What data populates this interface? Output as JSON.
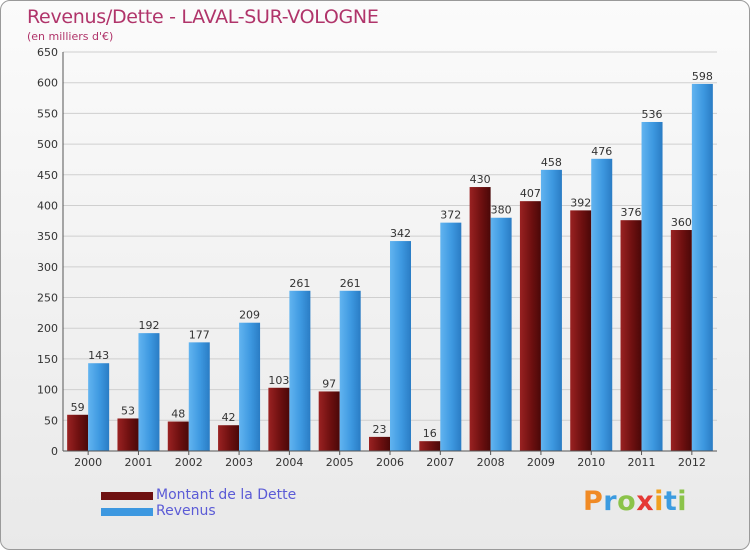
{
  "title": "Revenus/Dette - LAVAL-SUR-VOLOGNE",
  "subtitle": "(en milliers d'€)",
  "colors": {
    "debt": "#7a1212",
    "revenue": "#3d98e0",
    "title": "#b0346a",
    "legend_text": "#5b5bd6"
  },
  "logo": {
    "letters": [
      "P",
      "r",
      "o",
      "x",
      "i",
      "t",
      "i"
    ],
    "colors": [
      "#f08a24",
      "#3b9be0",
      "#8bc34a",
      "#e53935",
      "#f0a020",
      "#3b9be0",
      "#8bc34a"
    ]
  },
  "legend": [
    {
      "label": "Montant de la Dette",
      "series": 0
    },
    {
      "label": "Revenus",
      "series": 1
    }
  ],
  "chart_data": {
    "type": "bar",
    "title": "Revenus/Dette - LAVAL-SUR-VOLOGNE",
    "subtitle": "(en milliers d'€)",
    "categories": [
      "2000",
      "2001",
      "2002",
      "2003",
      "2004",
      "2005",
      "2006",
      "2007",
      "2008",
      "2009",
      "2010",
      "2011",
      "2012"
    ],
    "series": [
      {
        "name": "Montant de la Dette",
        "values": [
          59,
          53,
          48,
          42,
          103,
          97,
          23,
          16,
          430,
          407,
          392,
          376,
          360
        ]
      },
      {
        "name": "Revenus",
        "values": [
          143,
          192,
          177,
          209,
          261,
          261,
          342,
          372,
          380,
          458,
          476,
          536,
          598
        ]
      }
    ],
    "ylim": [
      0,
      650
    ],
    "yticks": [
      0,
      50,
      100,
      150,
      200,
      250,
      300,
      350,
      400,
      450,
      500,
      550,
      600,
      650
    ],
    "grid": true,
    "legend_position": "bottom-left"
  }
}
